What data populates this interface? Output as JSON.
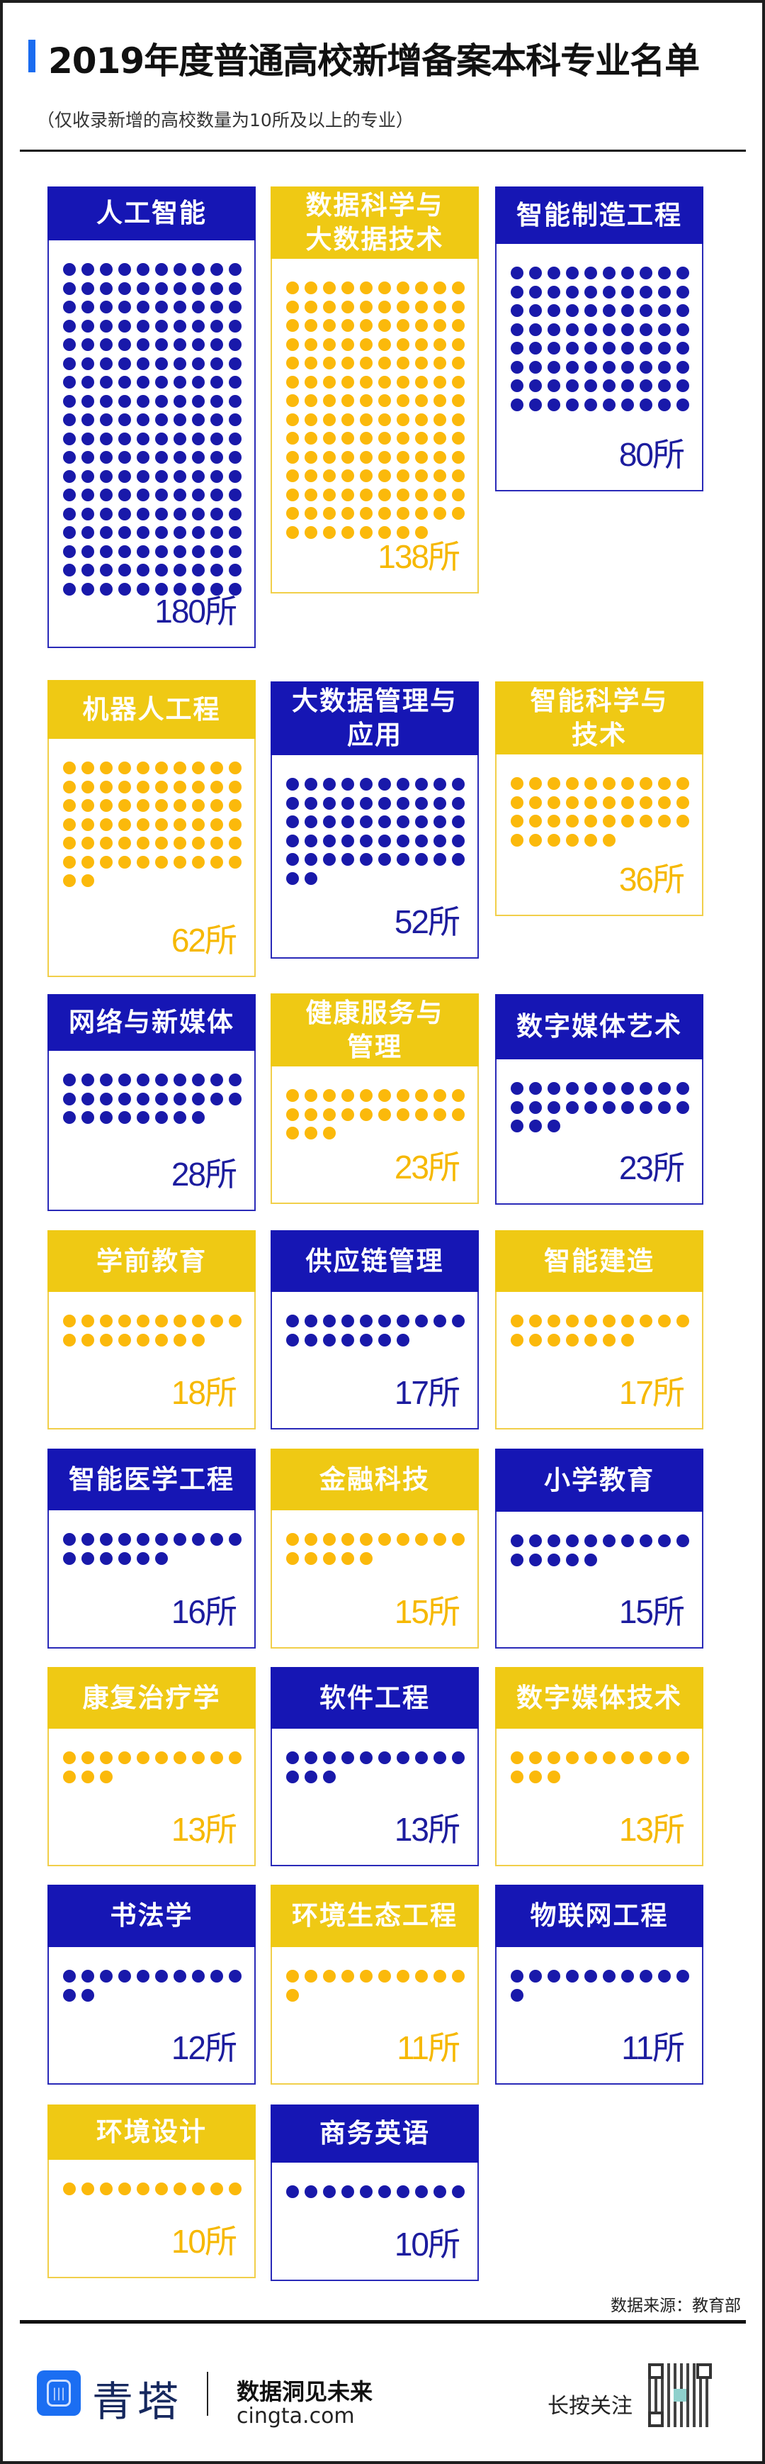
{
  "header": {
    "title": "2019年度普通高校新增备案本科专业名单",
    "subtitle": "（仅收录新增的高校数量为10所及以上的专业）"
  },
  "colors": {
    "blue": "#1616b4",
    "yellow": "#efc914",
    "blue_dot": "#1919aa",
    "yellow_dot": "#fbb90b",
    "accent": "#1a6cf0"
  },
  "chart_data": {
    "type": "table",
    "title": "2019年度普通高校新增备案本科专业名单",
    "unit": "所",
    "items": [
      {
        "name": "人工智能",
        "value": 180,
        "label": "180所",
        "color": "blue"
      },
      {
        "name": "数据科学与\n大数据技术",
        "value": 138,
        "label": "138所",
        "color": "yellow"
      },
      {
        "name": "智能制造工程",
        "value": 80,
        "label": "80所",
        "color": "blue"
      },
      {
        "name": "机器人工程",
        "value": 62,
        "label": "62所",
        "color": "yellow"
      },
      {
        "name": "大数据管理与\n应用",
        "value": 52,
        "label": "52所",
        "color": "blue"
      },
      {
        "name": "智能科学与\n技术",
        "value": 36,
        "label": "36所",
        "color": "yellow"
      },
      {
        "name": "网络与新媒体",
        "value": 28,
        "label": "28所",
        "color": "blue"
      },
      {
        "name": "健康服务与\n管理",
        "value": 23,
        "label": "23所",
        "color": "yellow"
      },
      {
        "name": "数字媒体艺术",
        "value": 23,
        "label": "23所",
        "color": "blue"
      },
      {
        "name": "学前教育",
        "value": 18,
        "label": "18所",
        "color": "yellow"
      },
      {
        "name": "供应链管理",
        "value": 17,
        "label": "17所",
        "color": "blue"
      },
      {
        "name": "智能建造",
        "value": 17,
        "label": "17所",
        "color": "yellow"
      },
      {
        "name": "智能医学工程",
        "value": 16,
        "label": "16所",
        "color": "blue"
      },
      {
        "name": "金融科技",
        "value": 15,
        "label": "15所",
        "color": "yellow"
      },
      {
        "name": "小学教育",
        "value": 15,
        "label": "15所",
        "color": "blue"
      },
      {
        "name": "康复治疗学",
        "value": 13,
        "label": "13所",
        "color": "yellow"
      },
      {
        "name": "软件工程",
        "value": 13,
        "label": "13所",
        "color": "blue"
      },
      {
        "name": "数字媒体技术",
        "value": 13,
        "label": "13所",
        "color": "yellow"
      },
      {
        "name": "书法学",
        "value": 12,
        "label": "12所",
        "color": "blue"
      },
      {
        "name": "环境生态工程",
        "value": 11,
        "label": "11所",
        "color": "yellow"
      },
      {
        "name": "物联网工程",
        "value": 11,
        "label": "11所",
        "color": "blue"
      },
      {
        "name": "环境设计",
        "value": 10,
        "label": "10所",
        "color": "yellow"
      },
      {
        "name": "商务英语",
        "value": 10,
        "label": "10所",
        "color": "blue"
      }
    ]
  },
  "source": "数据来源：教育部",
  "footer": {
    "brand": "青塔",
    "slogan": "数据洞见未来",
    "site": "cingta.com",
    "follow": "长按关注",
    "logo_icon": "sound-wave-hexagon-icon",
    "qr_icon": "qr-code-icon"
  }
}
